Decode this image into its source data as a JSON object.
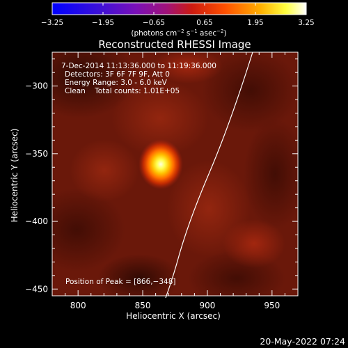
{
  "plot": {
    "title": "Reconstructed RHESSI Image",
    "xlabel": "Heliocentric X (arcsec)",
    "ylabel": "Heliocentric Y (arcsec)",
    "x_ticks": [
      "800",
      "850",
      "900",
      "950"
    ],
    "y_ticks": [
      "−300",
      "−350",
      "−400",
      "−450"
    ],
    "x_tick_values": [
      800,
      850,
      900,
      950
    ],
    "y_tick_values": [
      -300,
      -350,
      -400,
      -450
    ],
    "xlim": [
      780,
      970
    ],
    "ylim": [
      -455,
      -275
    ]
  },
  "colorbar": {
    "ticks": [
      "−3.25",
      "−1.95",
      "−0.65",
      "0.65",
      "1.95",
      "3.25"
    ],
    "tick_values": [
      -3.25,
      -1.95,
      -0.65,
      0.65,
      1.95,
      3.25
    ],
    "range": [
      -3.25,
      3.25
    ],
    "units_label": "(photons cm",
    "units_exp1": "−2",
    "units_mid": " s",
    "units_exp2": "−1",
    "units_end": " asec",
    "units_exp3": "−2",
    "units_close": ")"
  },
  "annotations": {
    "line1": "7‐Dec‐2014 11:13:36.000 to 11:19:36.000",
    "line2": "Detectors: 3F 6F 7F 9F, Att 0",
    "line3": "Energy Range: 3.0 ‐ 6.0 keV",
    "line4": "Clean    Total counts: 1.01E+05",
    "peak": "Position of Peak = [866,−348]"
  },
  "timestamp": "20‐May‐2022 07:24",
  "source": {
    "x": 866,
    "y": -348
  },
  "colors": {
    "background": "#000000",
    "limb": "#ffffff"
  }
}
